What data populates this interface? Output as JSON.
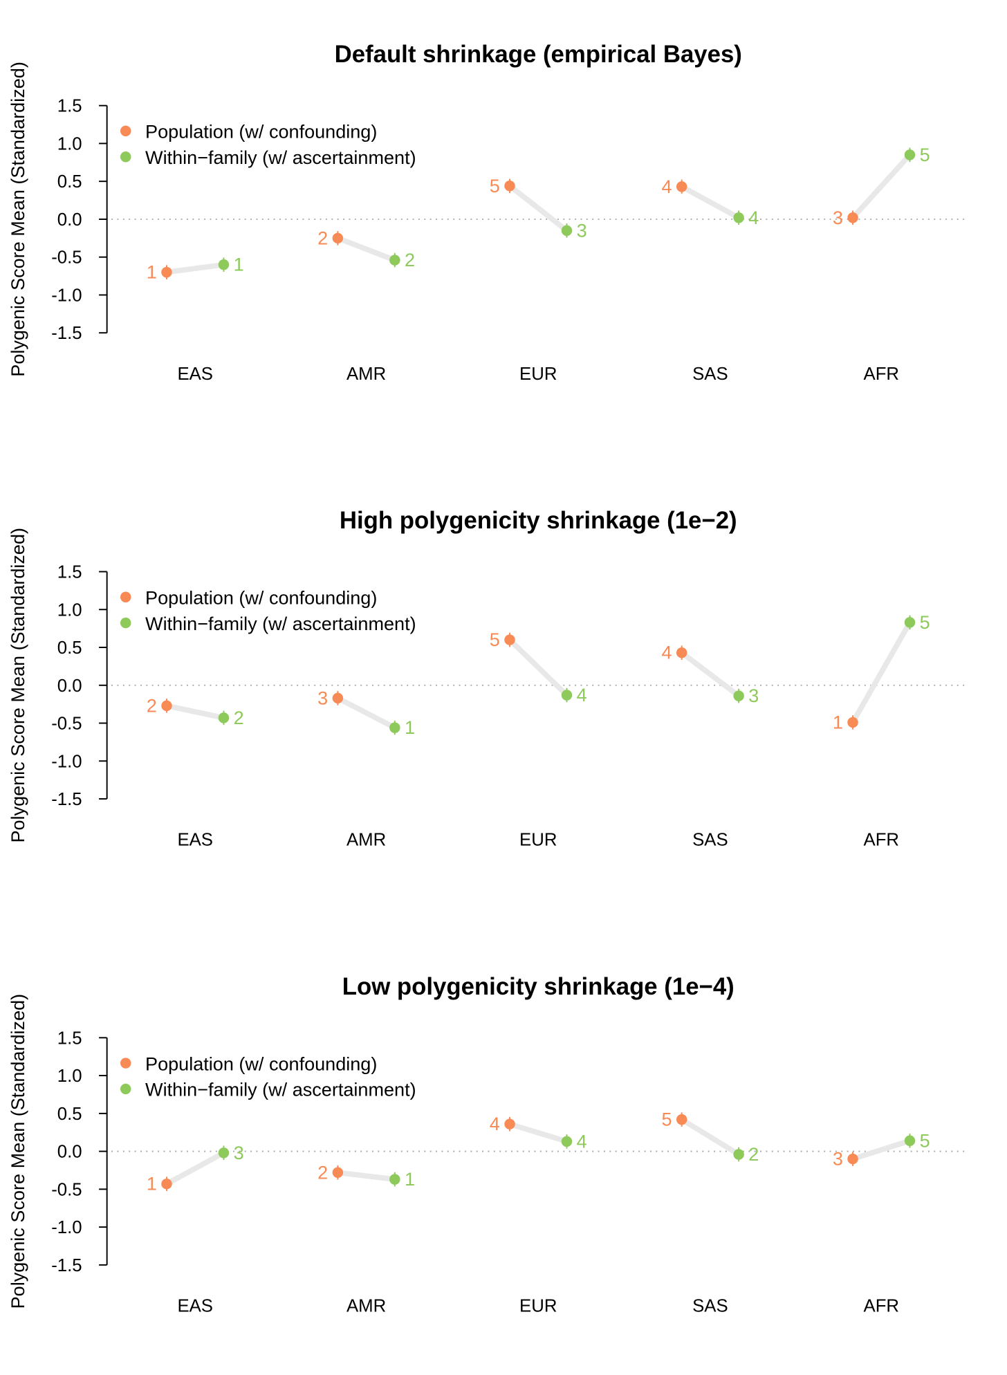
{
  "colors": {
    "population": "#f78a55",
    "within": "#8dc95b",
    "connector": "#e8e8e8",
    "zero_line": "#aaaaaa"
  },
  "chart_data": [
    {
      "type": "scatter",
      "title": "Default shrinkage (empirical Bayes)",
      "ylabel": "Polygenic Score Mean (Standardized)",
      "xlabel": "",
      "ylim": [
        -1.5,
        1.5
      ],
      "yticks": [
        "1.5",
        "1.0",
        "0.5",
        "0.0",
        "-0.5",
        "-1.0",
        "-1.5"
      ],
      "categories": [
        "EAS",
        "AMR",
        "EUR",
        "SAS",
        "AFR"
      ],
      "legend": {
        "placement": "top-left",
        "entries": [
          "Population (w/ confounding)",
          "Within−family (w/ ascertainment)"
        ]
      },
      "series": [
        {
          "name": "Population (w/ confounding)",
          "values": [
            -0.7,
            -0.25,
            0.44,
            0.43,
            0.02
          ],
          "ranks": [
            "1",
            "2",
            "5",
            "4",
            "3"
          ]
        },
        {
          "name": "Within-family (w/ ascertainment)",
          "values": [
            -0.6,
            -0.54,
            -0.15,
            0.02,
            0.85
          ],
          "ranks": [
            "1",
            "2",
            "3",
            "4",
            "5"
          ]
        }
      ]
    },
    {
      "type": "scatter",
      "title": "High polygenicity shrinkage (1e−2)",
      "ylabel": "Polygenic Score Mean (Standardized)",
      "xlabel": "",
      "ylim": [
        -1.5,
        1.5
      ],
      "yticks": [
        "1.5",
        "1.0",
        "0.5",
        "0.0",
        "-0.5",
        "-1.0",
        "-1.5"
      ],
      "categories": [
        "EAS",
        "AMR",
        "EUR",
        "SAS",
        "AFR"
      ],
      "legend": {
        "placement": "top-left",
        "entries": [
          "Population (w/ confounding)",
          "Within−family (w/ ascertainment)"
        ]
      },
      "series": [
        {
          "name": "Population (w/ confounding)",
          "values": [
            -0.27,
            -0.17,
            0.6,
            0.43,
            -0.49
          ],
          "ranks": [
            "2",
            "3",
            "5",
            "4",
            "1"
          ]
        },
        {
          "name": "Within-family (w/ ascertainment)",
          "values": [
            -0.43,
            -0.56,
            -0.13,
            -0.14,
            0.83
          ],
          "ranks": [
            "2",
            "1",
            "4",
            "3",
            "5"
          ]
        }
      ]
    },
    {
      "type": "scatter",
      "title": "Low polygenicity shrinkage (1e−4)",
      "ylabel": "Polygenic Score Mean (Standardized)",
      "xlabel": "",
      "ylim": [
        -1.5,
        1.5
      ],
      "yticks": [
        "1.5",
        "1.0",
        "0.5",
        "0.0",
        "-0.5",
        "-1.0",
        "-1.5"
      ],
      "categories": [
        "EAS",
        "AMR",
        "EUR",
        "SAS",
        "AFR"
      ],
      "legend": {
        "placement": "top-left",
        "entries": [
          "Population (w/ confounding)",
          "Within−family (w/ ascertainment)"
        ]
      },
      "series": [
        {
          "name": "Population (w/ confounding)",
          "values": [
            -0.43,
            -0.28,
            0.36,
            0.42,
            -0.1
          ],
          "ranks": [
            "1",
            "2",
            "4",
            "5",
            "3"
          ]
        },
        {
          "name": "Within-family (w/ ascertainment)",
          "values": [
            -0.02,
            -0.37,
            0.13,
            -0.04,
            0.14
          ],
          "ranks": [
            "3",
            "1",
            "4",
            "2",
            "5"
          ]
        }
      ]
    }
  ]
}
